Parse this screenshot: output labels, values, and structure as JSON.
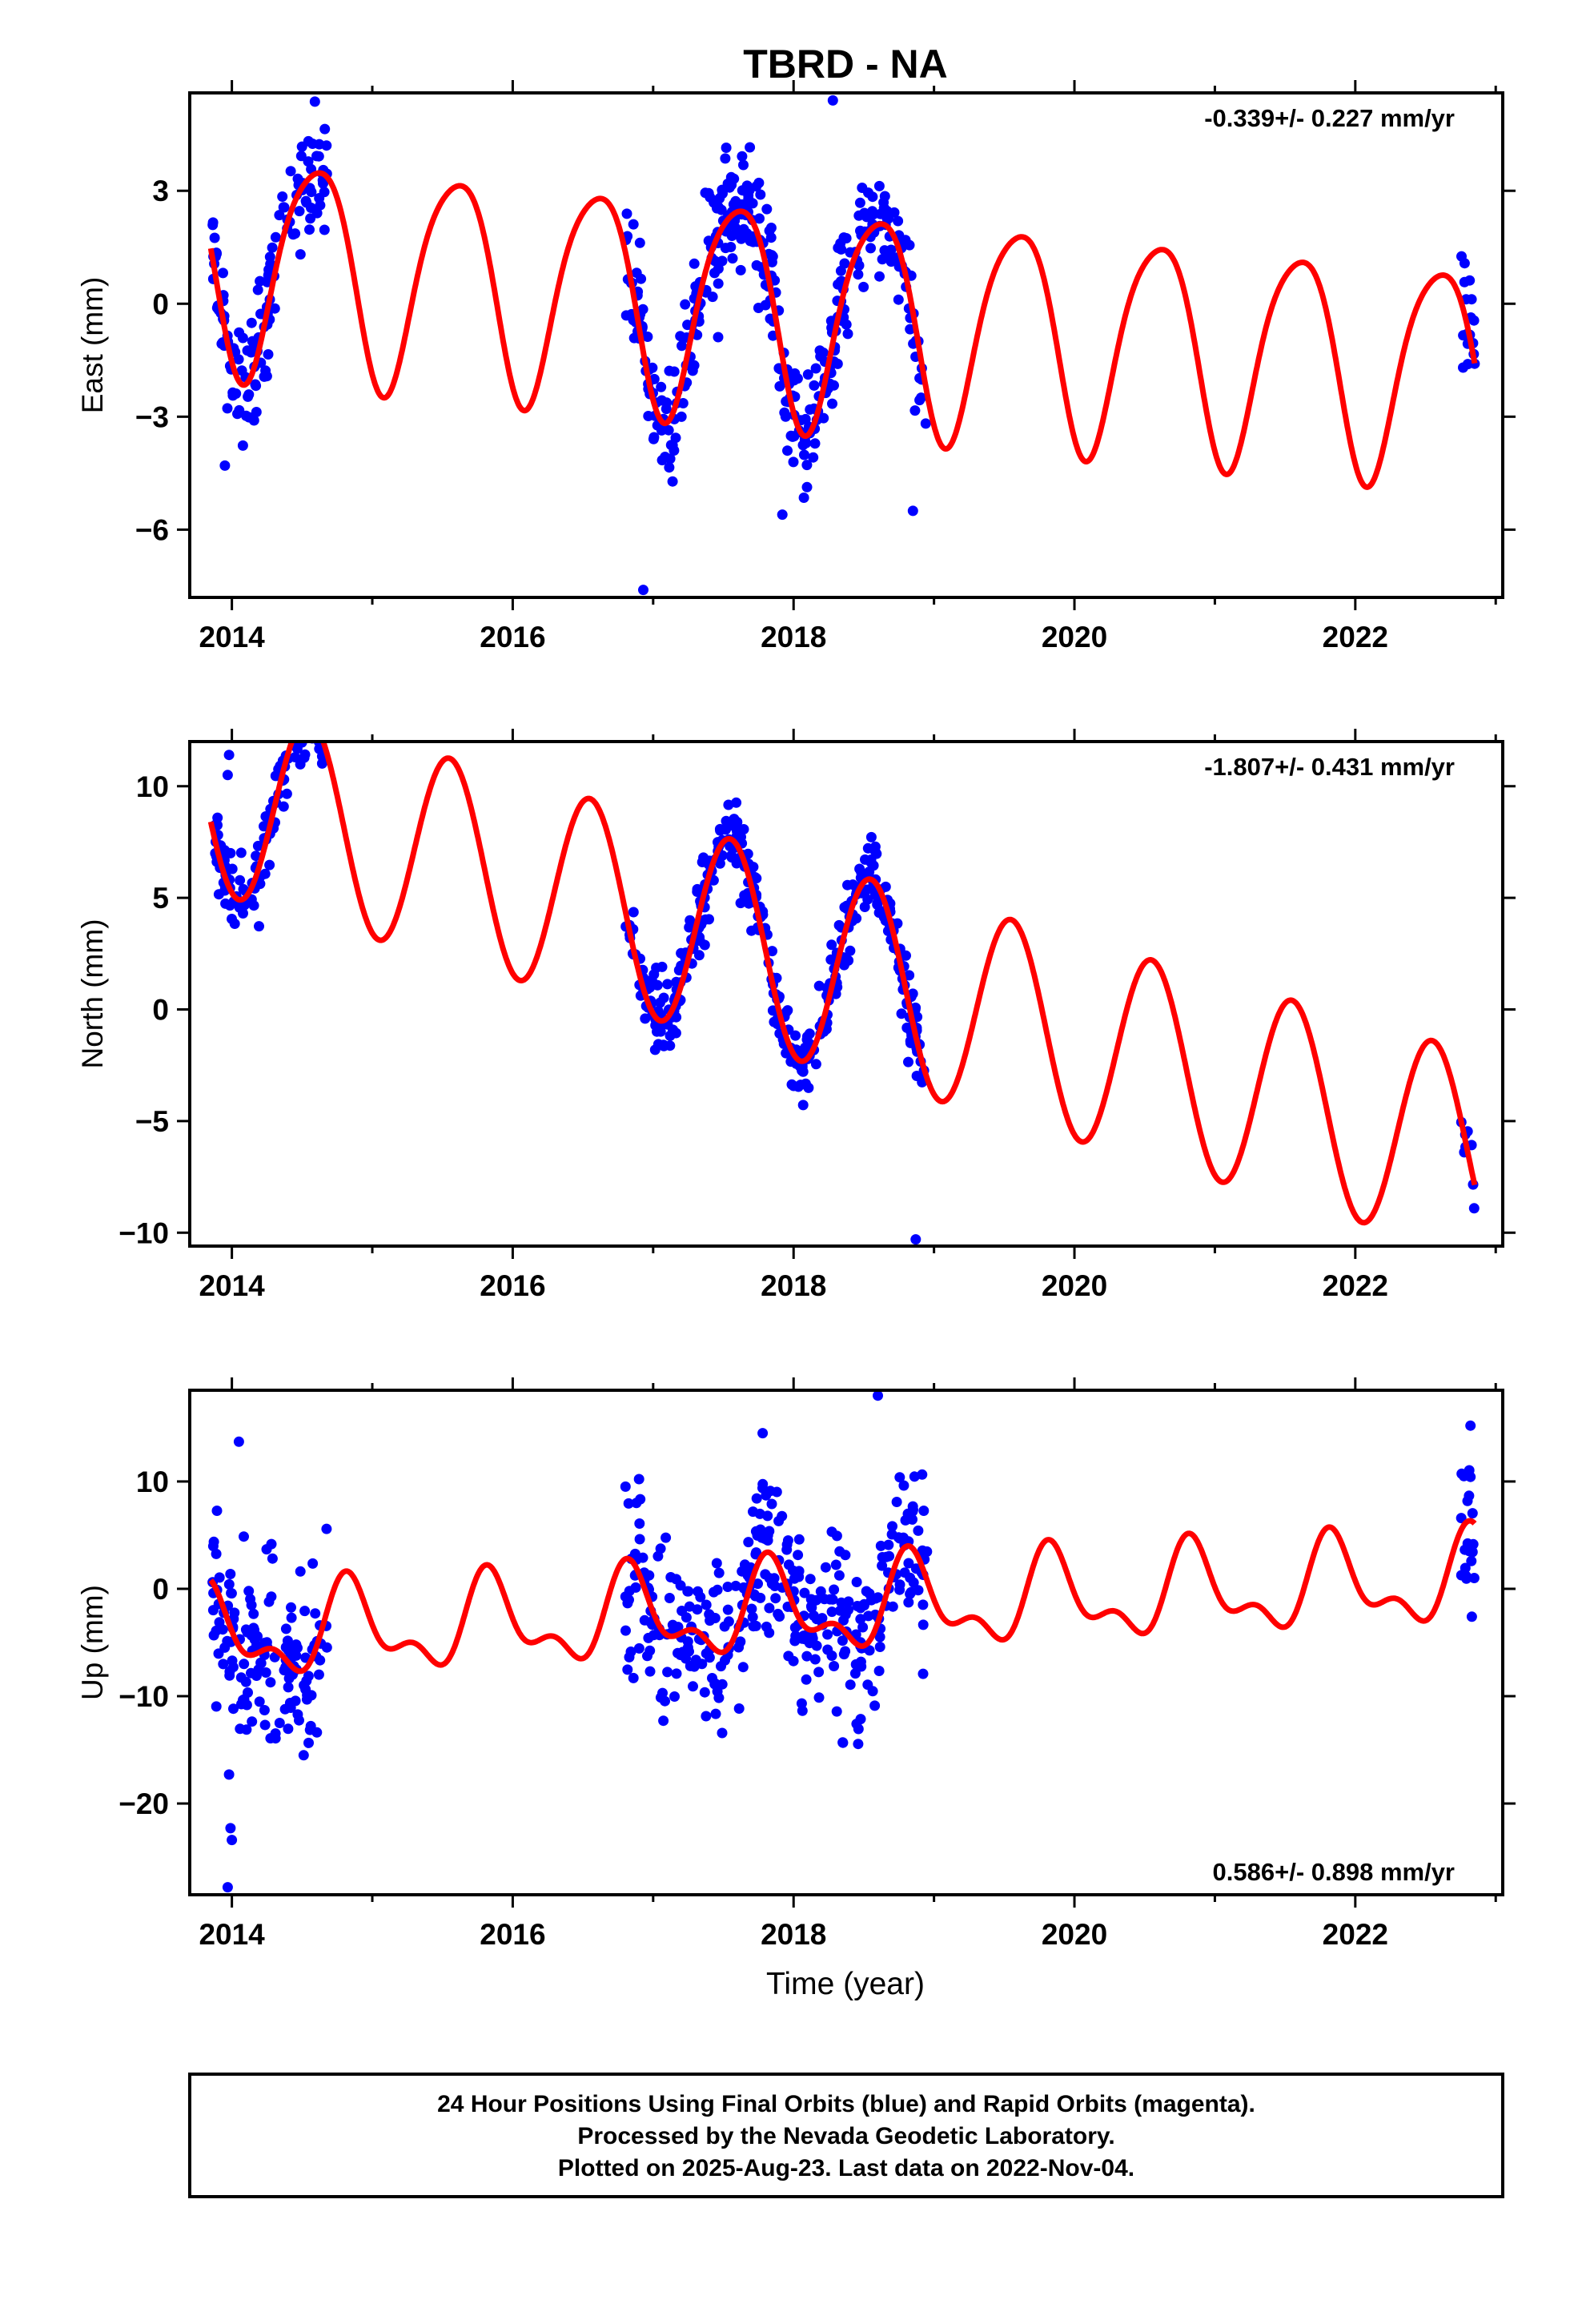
{
  "title": "TBRD - NA",
  "xlabel": "Time (year)",
  "footer": {
    "line1": "24 Hour Positions Using Final Orbits (blue) and Rapid Orbits (magenta).",
    "line2": "Processed by the Nevada Geodetic Laboratory.",
    "line3": "Plotted on 2025-Aug-23. Last data on 2022-Nov-04."
  },
  "colors": {
    "final": "#0000ff",
    "model": "#ff0000",
    "frame": "#000000"
  },
  "chart_data": [
    {
      "type": "scatter",
      "ylabel": "East (mm)",
      "rate": "-0.339+/- 0.227 mm/yr",
      "rate_position": "top-right",
      "xlim": [
        2013.7,
        2023.05
      ],
      "ylim": [
        -7.8,
        5.6
      ],
      "xticks": [
        2014,
        2016,
        2018,
        2020,
        2022
      ],
      "yticks": [
        3,
        0,
        -3,
        -6
      ],
      "ytick_labels": [
        "3",
        "0",
        "−3",
        "−6"
      ],
      "model": {
        "trend": -0.339,
        "offset": -0.2,
        "annual": [
          -1.6,
          -2.4
        ],
        "semiannual": [
          -0.3,
          -0.3
        ],
        "start": 2013.85,
        "end": 2022.85
      },
      "gaps": [
        [
          2014.68,
          2016.8
        ],
        [
          2018.95,
          2022.75
        ]
      ],
      "noise": 0.8,
      "outliers": [
        [
          2016.93,
          -7.6
        ],
        [
          2018.28,
          5.4
        ],
        [
          2013.95,
          -4.3
        ],
        [
          2017.92,
          -5.6
        ],
        [
          2018.85,
          -5.5
        ]
      ],
      "n_points": 520,
      "grid": false
    },
    {
      "type": "scatter",
      "ylabel": "North (mm)",
      "rate": "-1.807+/- 0.431 mm/yr",
      "rate_position": "top-right",
      "xlim": [
        2013.7,
        2023.05
      ],
      "ylim": [
        -10.6,
        12.0
      ],
      "xticks": [
        2014,
        2016,
        2018,
        2020,
        2022
      ],
      "yticks": [
        10,
        5,
        0,
        -5,
        -10
      ],
      "ytick_labels": [
        "10",
        "5",
        "0",
        "−5",
        "−10"
      ],
      "model": {
        "trend": -1.807,
        "offset": 2.3,
        "annual": [
          -1.4,
          -4.3
        ],
        "semiannual": [
          0.0,
          0.0
        ],
        "start": 2013.85,
        "end": 2022.85
      },
      "gaps": [
        [
          2014.68,
          2016.8
        ],
        [
          2018.95,
          2022.75
        ]
      ],
      "noise": 0.9,
      "outliers": [
        [
          2013.98,
          11.4
        ],
        [
          2013.97,
          10.5
        ],
        [
          2013.99,
          7.0
        ],
        [
          2014.45,
          11.3
        ],
        [
          2017.35,
          6.6
        ],
        [
          2018.87,
          -10.3
        ]
      ],
      "n_points": 520,
      "grid": false
    },
    {
      "type": "scatter",
      "ylabel": "Up (mm)",
      "rate": "0.586+/- 0.898 mm/yr",
      "rate_position": "bottom-right",
      "xlim": [
        2013.7,
        2023.05
      ],
      "ylim": [
        -28.5,
        18.5
      ],
      "xticks": [
        2014,
        2016,
        2018,
        2020,
        2022
      ],
      "yticks": [
        10,
        0,
        -10,
        -20
      ],
      "ytick_labels": [
        "10",
        "0",
        "−10",
        "−20"
      ],
      "model": {
        "trend": 0.586,
        "offset": -2.0,
        "annual": [
          -3.0,
          2.0
        ],
        "semiannual": [
          -1.2,
          -1.6
        ],
        "start": 2013.85,
        "end": 2022.85
      },
      "gaps": [
        [
          2014.68,
          2016.8
        ],
        [
          2018.95,
          2022.75
        ]
      ],
      "noise": 4.2,
      "outliers": [
        [
          2013.98,
          -17.3
        ],
        [
          2013.99,
          -22.3
        ],
        [
          2014.0,
          -23.4
        ],
        [
          2013.97,
          -27.8
        ],
        [
          2014.05,
          13.7
        ],
        [
          2017.78,
          14.5
        ],
        [
          2018.6,
          18.0
        ],
        [
          2018.35,
          -14.3
        ],
        [
          2022.82,
          15.2
        ],
        [
          2022.83,
          -2.6
        ]
      ],
      "n_points": 520,
      "grid": false
    }
  ]
}
